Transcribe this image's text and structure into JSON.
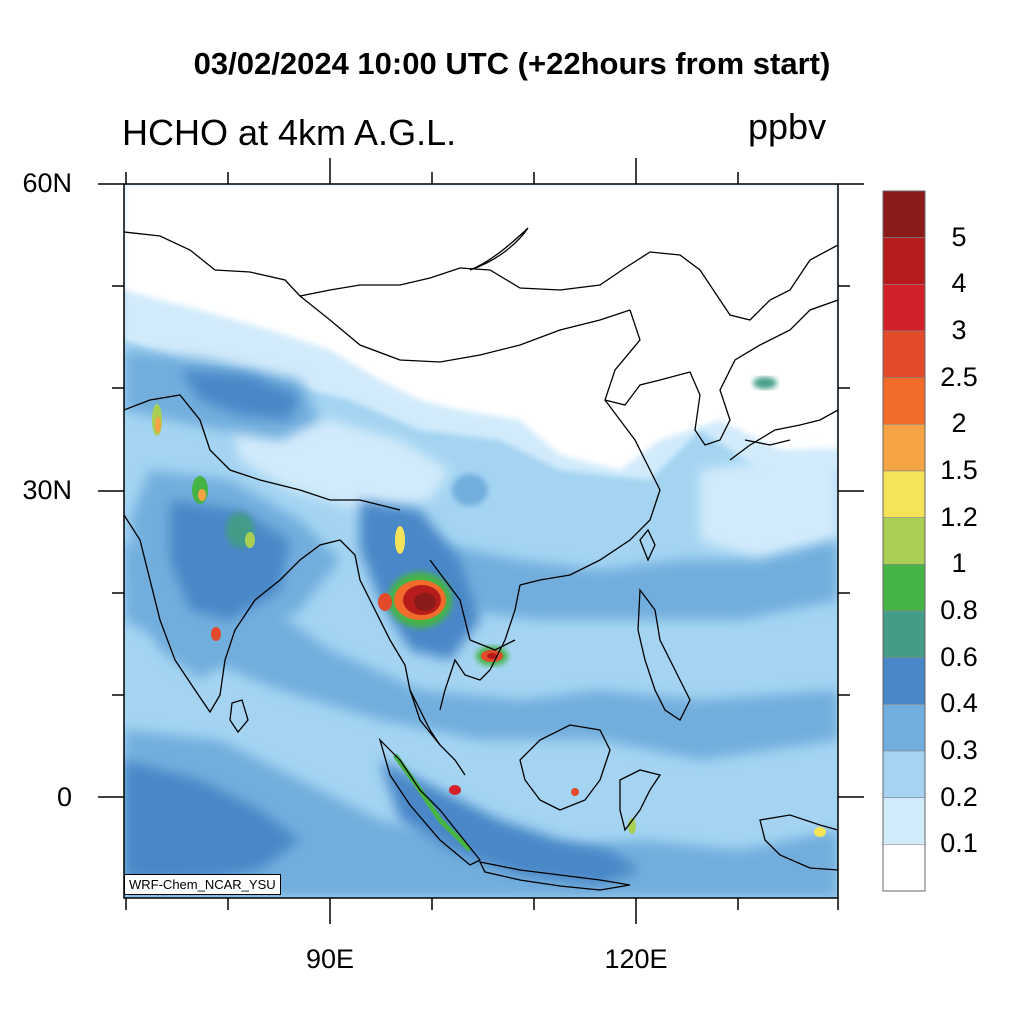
{
  "title": "03/02/2024 10:00 UTC (+22hours from start)",
  "variable": "HCHO at 4km A.G.L.",
  "units": "ppbv",
  "credit": "WRF-Chem_NCAR_YSU",
  "lat_ticks": [
    "60N",
    "30N",
    "0"
  ],
  "lon_ticks": [
    "90E",
    "120E"
  ],
  "colorbar": {
    "labels": [
      "5",
      "4",
      "3",
      "2.5",
      "2",
      "1.5",
      "1.2",
      "1",
      "0.8",
      "0.6",
      "0.4",
      "0.3",
      "0.2",
      "0.1"
    ],
    "colors": [
      "#8b1a1a",
      "#b71c1c",
      "#d32129",
      "#e34a2a",
      "#f26b2a",
      "#f5a445",
      "#f5e35a",
      "#a8cf52",
      "#46b346",
      "#429c88",
      "#4a87c8",
      "#72aedd",
      "#a4d4f2",
      "#d2ebfb",
      "#ffffff"
    ]
  }
}
